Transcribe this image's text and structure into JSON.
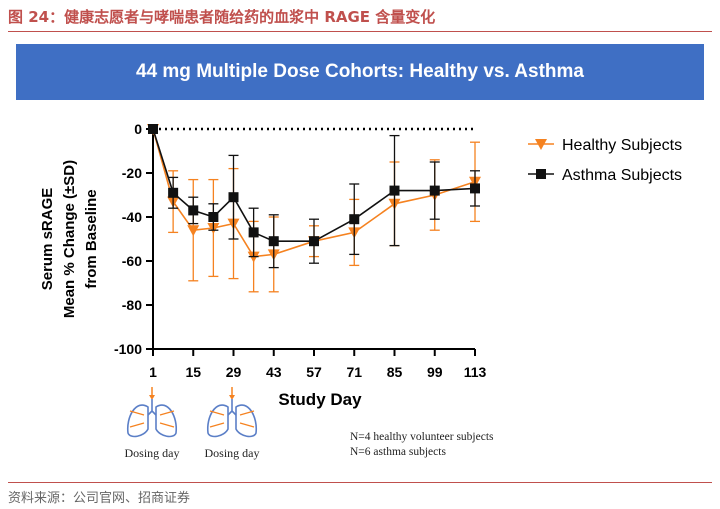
{
  "figure": {
    "caption": "图 24：健康志愿者与哮喘患者随给药的血浆中 RAGE 含量变化",
    "source": "资料来源：公司官网、招商证券"
  },
  "banner": {
    "title": "44 mg Multiple Dose Cohorts: Healthy vs. Asthma"
  },
  "notes": [
    "N=4 healthy volunteer subjects",
    "N=6 asthma subjects"
  ],
  "dosing_label": "Dosing day",
  "chart_data": {
    "type": "line",
    "xlabel": "Study Day",
    "ylabel_lines": [
      "Serum sRAGE",
      "Mean % Change (±SD)",
      "from Baseline"
    ],
    "ylim": [
      -100,
      0
    ],
    "y_ticks": [
      0,
      -20,
      -40,
      -60,
      -80,
      -100
    ],
    "xlim": [
      1,
      113
    ],
    "x_ticks": [
      1,
      15,
      29,
      43,
      57,
      71,
      85,
      99,
      113
    ],
    "baseline_zero_dotted": true,
    "dosing_days": [
      1,
      29
    ],
    "legend_position": "right",
    "series": [
      {
        "name": "Healthy Subjects",
        "color": "#f58220",
        "marker": "triangle-down",
        "x": [
          1,
          8,
          15,
          22,
          29,
          36,
          43,
          57,
          71,
          85,
          99,
          113
        ],
        "y": [
          0,
          -33,
          -46,
          -45,
          -43,
          -58,
          -57,
          -51,
          -47,
          -34,
          -30,
          -24
        ],
        "sd": [
          0,
          14,
          23,
          22,
          25,
          16,
          17,
          7,
          15,
          19,
          16,
          18
        ]
      },
      {
        "name": "Asthma Subjects",
        "color": "#111111",
        "marker": "square",
        "x": [
          1,
          8,
          15,
          22,
          29,
          36,
          43,
          57,
          71,
          85,
          99,
          113
        ],
        "y": [
          0,
          -29,
          -37,
          -40,
          -31,
          -47,
          -51,
          -51,
          -41,
          -28,
          -28,
          -27
        ],
        "sd": [
          0,
          7,
          6,
          6,
          19,
          11,
          12,
          10,
          16,
          25,
          13,
          8
        ]
      }
    ]
  }
}
